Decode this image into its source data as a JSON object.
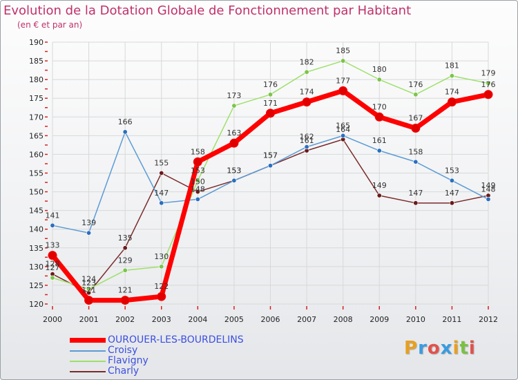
{
  "colors": {
    "title": "#c0306a",
    "background": "#eef0f2",
    "grid": "#d8d8d8",
    "axis_ticks": "#d81e1e",
    "legend_text": "#3b4fe0",
    "logo_letters": [
      "#e8a020",
      "#3a9be0",
      "#e0524c",
      "#3a9be0",
      "#e8a020",
      "#7bc043",
      "#e0524c"
    ]
  },
  "chart_data": {
    "type": "line",
    "title": "Evolution de la Dotation Globale de Fonctionnement par Habitant",
    "subtitle": "(en € et par an)",
    "xlabel": "",
    "ylabel": "",
    "categories": [
      "2000",
      "2001",
      "2002",
      "2003",
      "2004",
      "2005",
      "2006",
      "2007",
      "2008",
      "2009",
      "2010",
      "2011",
      "2012"
    ],
    "ylim": [
      120,
      190
    ],
    "yticks": [
      120,
      125,
      130,
      135,
      140,
      145,
      150,
      155,
      160,
      165,
      170,
      175,
      180,
      185,
      190
    ],
    "grid": true,
    "legend_position": "bottom-left",
    "series": [
      {
        "name": "OUROUER-LES-BOURDELINS",
        "color": "#ff0000",
        "width": 7,
        "marker_color": "#e00000",
        "values": [
          133,
          121,
          121,
          122,
          158,
          163,
          171,
          174,
          177,
          170,
          167,
          174,
          176
        ]
      },
      {
        "name": "Croisy",
        "color": "#5b9bd5",
        "width": 1.5,
        "marker_color": "#2a6fbf",
        "values": [
          141,
          139,
          166,
          147,
          148,
          153,
          157,
          162,
          165,
          161,
          158,
          153,
          148
        ]
      },
      {
        "name": "Flavigny",
        "color": "#9ee06a",
        "width": 1.5,
        "marker_color": "#7cc44a",
        "values": [
          127,
          124,
          129,
          130,
          153,
          173,
          176,
          182,
          185,
          180,
          176,
          181,
          179
        ]
      },
      {
        "name": "Charly",
        "color": "#7a2a2a",
        "width": 1.5,
        "marker_color": "#6a1a1a",
        "values": [
          128,
          123,
          135,
          155,
          150,
          153,
          157,
          161,
          164,
          149,
          147,
          147,
          149
        ]
      }
    ]
  },
  "logo": {
    "text": "Proxiti"
  }
}
